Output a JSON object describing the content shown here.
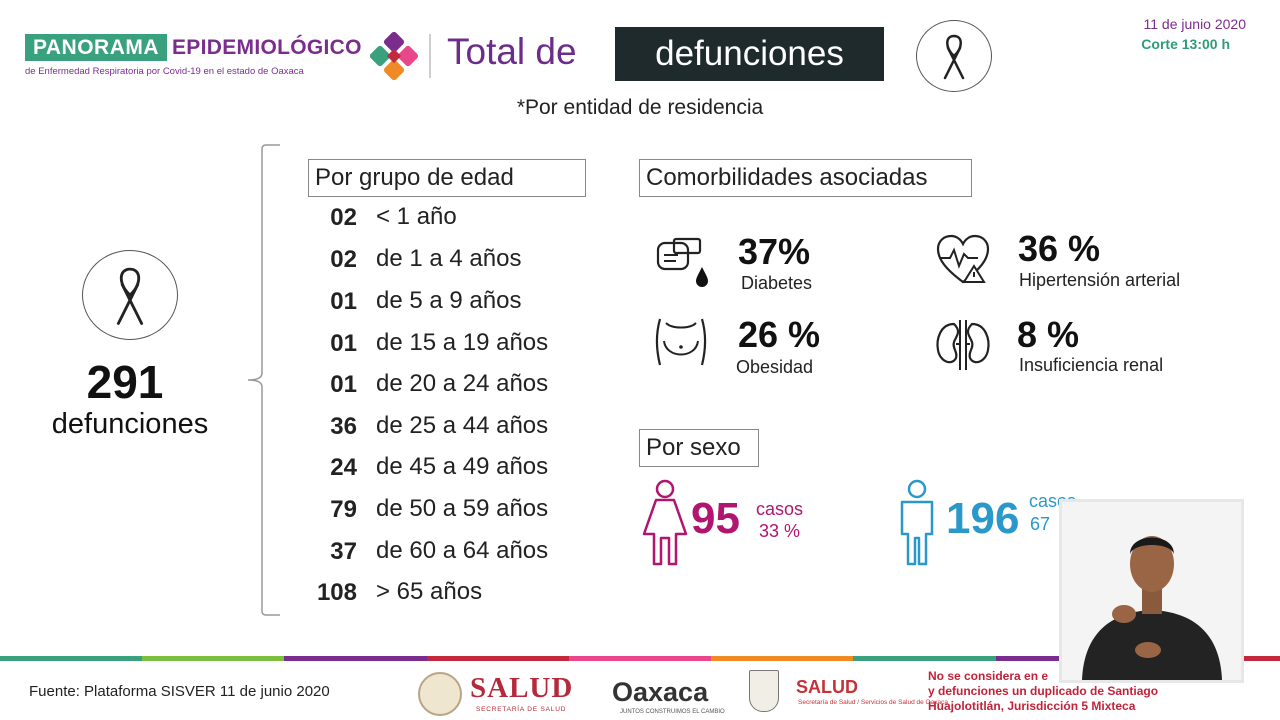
{
  "header": {
    "logo_line1": "PANORAMA",
    "logo_line2": "EPIDEMIOLÓGICO",
    "logo_subtitle": "de Enfermedad Respiratoria por Covid-19 en el estado de Oaxaca",
    "title_prefix": "Total de",
    "title_highlight": "defunciones",
    "date": "11 de junio 2020",
    "cutoff": "Corte 13:00 h"
  },
  "subtitle": "*Por entidad de residencia",
  "total": {
    "value": "291",
    "label": "defunciones"
  },
  "age_groups": {
    "title": "Por grupo de edad",
    "rows": [
      {
        "count": "02",
        "range": "< 1 año"
      },
      {
        "count": "02",
        "range": "de 1 a 4 años"
      },
      {
        "count": "01",
        "range": "de 5 a 9 años"
      },
      {
        "count": "01",
        "range": "de 15 a 19 años"
      },
      {
        "count": "01",
        "range": "de 20 a 24 años"
      },
      {
        "count": "36",
        "range": "de 25 a 44 años"
      },
      {
        "count": "24",
        "range": "de 45 a 49 años"
      },
      {
        "count": "79",
        "range": "de 50 a 59 años"
      },
      {
        "count": "37",
        "range": "de 60 a 64 años"
      },
      {
        "count": "108",
        "range": "> 65 años"
      }
    ]
  },
  "comorbidities": {
    "title": "Comorbilidades asociadas",
    "items": [
      {
        "pct": "37%",
        "name": "Diabetes",
        "icon": "diabetes-icon"
      },
      {
        "pct": "36 %",
        "name": "Hipertensión arterial",
        "icon": "heart-icon"
      },
      {
        "pct": "26 %",
        "name": "Obesidad",
        "icon": "obesity-icon"
      },
      {
        "pct": "8 %",
        "name": "Insuficiencia renal",
        "icon": "kidneys-icon"
      }
    ]
  },
  "sex": {
    "title": "Por sexo",
    "female": {
      "count": "95",
      "label": "casos",
      "pct": "33 %",
      "color": "#b0156f"
    },
    "male": {
      "count": "196",
      "label": "casos",
      "pct": "67",
      "color": "#2a98c9"
    }
  },
  "footer": {
    "source": "Fuente: Plataforma SISVER 11 de junio 2020",
    "salud_federal": "SALUD",
    "salud_federal_sub": "SECRETARÍA DE SALUD",
    "oaxaca": "Oaxaca",
    "oaxaca_sub": "JUNTOS CONSTRUIMOS EL CAMBIO",
    "salud_state": "SALUD",
    "salud_state_sub": "Secretaría de Salud / Servicios de Salud de Oaxaca",
    "note_line1": "No se considera en e",
    "note_line2": "y defunciones un duplicado de Santiago",
    "note_line3": "Huajolotitlán, Jurisdicción 5 Mixteca"
  },
  "colors": {
    "brand_green": "#3aa17e",
    "brand_purple": "#7b2d8e",
    "female": "#b0156f",
    "male": "#2a98c9"
  }
}
